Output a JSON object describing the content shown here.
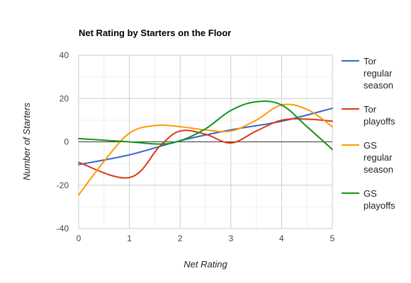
{
  "chart_data": {
    "type": "line",
    "title": "Net Rating by Starters on the Floor",
    "xlabel": "Net Rating",
    "ylabel": "Number of Starters",
    "x": [
      0,
      1,
      2,
      3,
      4,
      5
    ],
    "xlim": [
      0,
      5
    ],
    "ylim": [
      -40,
      40
    ],
    "xticks": [
      0,
      1,
      2,
      3,
      4,
      5
    ],
    "yticks": [
      -40,
      -20,
      0,
      20,
      40
    ],
    "grid": true,
    "legend_position": "right",
    "smooth": true,
    "series": [
      {
        "name_lines": [
          "Tor",
          "regular",
          "season"
        ],
        "color": "#3366cc",
        "x": [
          0,
          1,
          2,
          3,
          4,
          5
        ],
        "values": [
          -10.5,
          -6,
          0.5,
          5.5,
          9.5,
          15.5
        ]
      },
      {
        "name_lines": [
          "Tor",
          "playoffs"
        ],
        "color": "#dc3912",
        "x": [
          0,
          1,
          1.6,
          2,
          2.5,
          3,
          3.5,
          4,
          4.5,
          5
        ],
        "values": [
          -9.5,
          -16.5,
          -2,
          5,
          3.5,
          -0.5,
          5,
          10,
          10.5,
          9.5
        ]
      },
      {
        "name_lines": [
          "GS",
          "regular",
          "season"
        ],
        "color": "#ff9900",
        "x": [
          0,
          0.5,
          1,
          1.5,
          2,
          2.5,
          3,
          3.5,
          4,
          4.5,
          5
        ],
        "values": [
          -24.5,
          -9,
          4,
          7.5,
          7,
          5.5,
          5,
          10,
          17,
          15,
          7
        ]
      },
      {
        "name_lines": [
          "GS",
          "playoffs"
        ],
        "color": "#109618",
        "x": [
          0,
          1,
          1.6,
          2,
          2.5,
          3,
          3.5,
          4,
          4.5,
          5
        ],
        "values": [
          1.5,
          0,
          -1,
          0.5,
          6,
          14.5,
          18.5,
          17,
          7,
          -3.5
        ]
      }
    ]
  }
}
